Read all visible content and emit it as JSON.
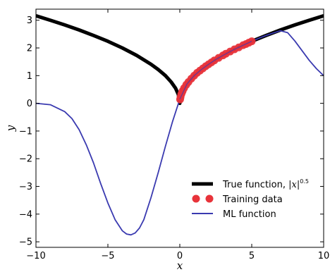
{
  "chart_data": {
    "type": "line",
    "xlabel": "x",
    "ylabel": "y",
    "xlim": [
      -10,
      10
    ],
    "ylim": [
      -5.2,
      3.4
    ],
    "xticks": [
      -10,
      -5,
      0,
      5,
      10
    ],
    "yticks": [
      -5,
      -4,
      -3,
      -2,
      -1,
      0,
      1,
      2,
      3
    ],
    "xtick_labels": [
      "−10",
      "−5",
      "0",
      "5",
      "10"
    ],
    "ytick_labels": [
      "−5",
      "−4",
      "−3",
      "−2",
      "−1",
      "0",
      "1",
      "2",
      "3"
    ],
    "grid": false,
    "legend_position": "bottom-right",
    "series": [
      {
        "name": "True function, |x|^0.5",
        "legend_text": "True function, ",
        "legend_math_base": "|x|",
        "legend_math_exp": "0.5",
        "kind": "line",
        "color": "#000000",
        "x": [
          -10,
          -9,
          -8,
          -7,
          -6,
          -5,
          -4,
          -3,
          -2,
          -1.5,
          -1,
          -0.6,
          -0.3,
          -0.1,
          0,
          0.1,
          0.3,
          0.6,
          1,
          1.5,
          2,
          3,
          4,
          5,
          6,
          7,
          8,
          9,
          10
        ],
        "y": [
          3.16,
          3.0,
          2.83,
          2.65,
          2.45,
          2.24,
          2.0,
          1.73,
          1.41,
          1.22,
          1.0,
          0.77,
          0.55,
          0.32,
          0.0,
          0.32,
          0.55,
          0.77,
          1.0,
          1.22,
          1.41,
          1.73,
          2.0,
          2.24,
          2.45,
          2.65,
          2.83,
          3.0,
          3.16
        ]
      },
      {
        "name": "Training data",
        "kind": "scatter",
        "color": "#e8333a",
        "x": [
          0.02,
          0.05,
          0.1,
          0.15,
          0.2,
          0.3,
          0.45,
          0.6,
          0.8,
          1.0,
          1.2,
          1.4,
          1.6,
          1.8,
          2.0,
          2.2,
          2.4,
          2.7,
          3.0,
          3.2,
          3.5,
          3.8,
          4.1,
          4.4,
          4.6,
          4.8,
          5.0
        ],
        "y": [
          0.14,
          0.22,
          0.32,
          0.39,
          0.45,
          0.55,
          0.67,
          0.77,
          0.89,
          1.0,
          1.1,
          1.18,
          1.26,
          1.34,
          1.41,
          1.48,
          1.55,
          1.64,
          1.73,
          1.79,
          1.87,
          1.95,
          2.02,
          2.1,
          2.14,
          2.19,
          2.24
        ]
      },
      {
        "name": "ML function",
        "kind": "line",
        "color": "#3a3ab0",
        "x": [
          -10,
          -9,
          -8,
          -7.5,
          -7,
          -6.5,
          -6,
          -5.5,
          -5,
          -4.5,
          -4,
          -3.7,
          -3.4,
          -3.1,
          -2.8,
          -2.5,
          -2,
          -1.5,
          -1,
          -0.5,
          0,
          0.5,
          1,
          1.5,
          2,
          2.5,
          3,
          3.5,
          4,
          4.5,
          5,
          5.5,
          6,
          6.5,
          7,
          7.5,
          8,
          8.5,
          9,
          9.5,
          10
        ],
        "y": [
          0.0,
          -0.05,
          -0.3,
          -0.55,
          -0.95,
          -1.5,
          -2.15,
          -2.9,
          -3.6,
          -4.2,
          -4.6,
          -4.72,
          -4.75,
          -4.68,
          -4.5,
          -4.2,
          -3.4,
          -2.5,
          -1.55,
          -0.65,
          0.15,
          0.7,
          1.0,
          1.22,
          1.41,
          1.58,
          1.73,
          1.87,
          2.0,
          2.12,
          2.24,
          2.35,
          2.45,
          2.54,
          2.62,
          2.55,
          2.25,
          1.9,
          1.55,
          1.25,
          1.0
        ]
      }
    ]
  }
}
